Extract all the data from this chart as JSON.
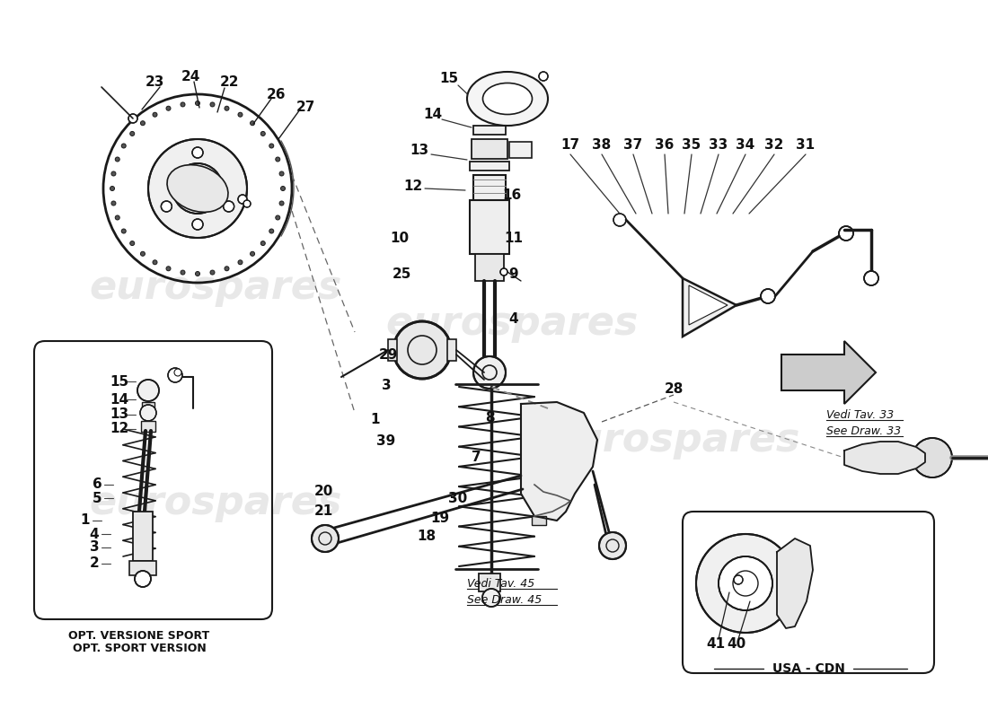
{
  "background_color": "#ffffff",
  "line_color": "#1a1a1a",
  "watermark_color": "#cccccc",
  "figsize": [
    11.0,
    8.0
  ],
  "dpi": 100,
  "opt_sport_text": [
    "OPT. VERSIONE SPORT",
    "OPT. SPORT VERSION"
  ],
  "usa_cdn_text": "USA - CDN",
  "vedi_tav33_text": [
    "Vedi Tav. 33",
    "See Draw. 33"
  ],
  "vedi_tav45_text": [
    "Vedi Tav. 45",
    "See Draw. 45"
  ]
}
